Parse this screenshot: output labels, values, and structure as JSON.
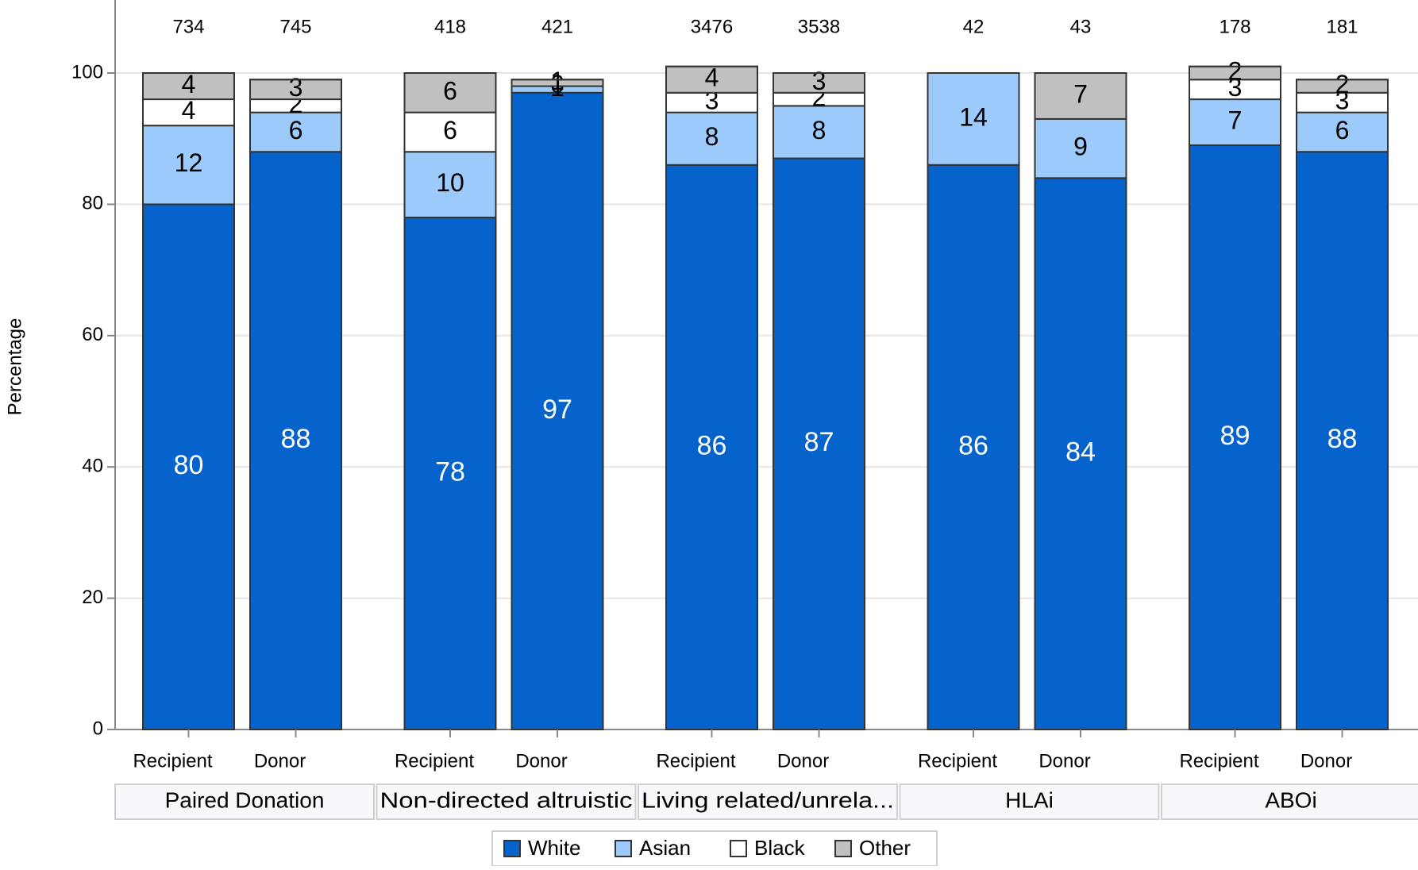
{
  "chart_data": {
    "type": "bar",
    "stacked": true,
    "ylabel": "Percentage",
    "xlabel": "",
    "ylim": [
      0,
      110
    ],
    "yticks": [
      0,
      20,
      40,
      60,
      80,
      100
    ],
    "grid": true,
    "legend_position": "bottom",
    "series_names": [
      "White",
      "Asian",
      "Black",
      "Other"
    ],
    "series_colors": [
      "#0763cc",
      "#9ccbfb",
      "#ffffff",
      "#c0c0c0"
    ],
    "series_label_colors": [
      "#ffffff",
      "#000000",
      "#000000",
      "#000000"
    ],
    "groups": [
      {
        "label": "Paired Donation",
        "bars": [
          {
            "label": "Recipient",
            "n": "734",
            "values": [
              80,
              12,
              4,
              4
            ],
            "labels": [
              "80",
              "12",
              "4",
              "4"
            ]
          },
          {
            "label": "Donor",
            "n": "745",
            "values": [
              88,
              6,
              2,
              3
            ],
            "labels": [
              "88",
              "6",
              "2",
              "3"
            ]
          }
        ]
      },
      {
        "label": "Non-directed altruistic",
        "bars": [
          {
            "label": "Recipient",
            "n": "418",
            "values": [
              78,
              10,
              6,
              6
            ],
            "labels": [
              "78",
              "10",
              "6",
              "6"
            ]
          },
          {
            "label": "Donor",
            "n": "421",
            "values": [
              97,
              1,
              0,
              1
            ],
            "labels": [
              "97",
              "1",
              "0",
              "1"
            ]
          }
        ]
      },
      {
        "label": "Living related/unrela...",
        "bars": [
          {
            "label": "Recipient",
            "n": "3476",
            "values": [
              86,
              8,
              3,
              4
            ],
            "labels": [
              "86",
              "8",
              "3",
              "4"
            ]
          },
          {
            "label": "Donor",
            "n": "3538",
            "values": [
              87,
              8,
              2,
              3
            ],
            "labels": [
              "87",
              "8",
              "2",
              "3"
            ]
          }
        ]
      },
      {
        "label": "HLAi",
        "bars": [
          {
            "label": "Recipient",
            "n": "42",
            "values": [
              86,
              14,
              0,
              0
            ],
            "labels": [
              "86",
              "14",
              "",
              ""
            ]
          },
          {
            "label": "Donor",
            "n": "43",
            "values": [
              84,
              9,
              0,
              7
            ],
            "labels": [
              "84",
              "9",
              "",
              "7"
            ]
          }
        ]
      },
      {
        "label": "ABOi",
        "bars": [
          {
            "label": "Recipient",
            "n": "178",
            "values": [
              89,
              7,
              3,
              2
            ],
            "labels": [
              "89",
              "7",
              "3",
              "2"
            ]
          },
          {
            "label": "Donor",
            "n": "181",
            "values": [
              88,
              6,
              3,
              2
            ],
            "labels": [
              "88",
              "6",
              "3",
              "2"
            ]
          }
        ]
      }
    ]
  }
}
